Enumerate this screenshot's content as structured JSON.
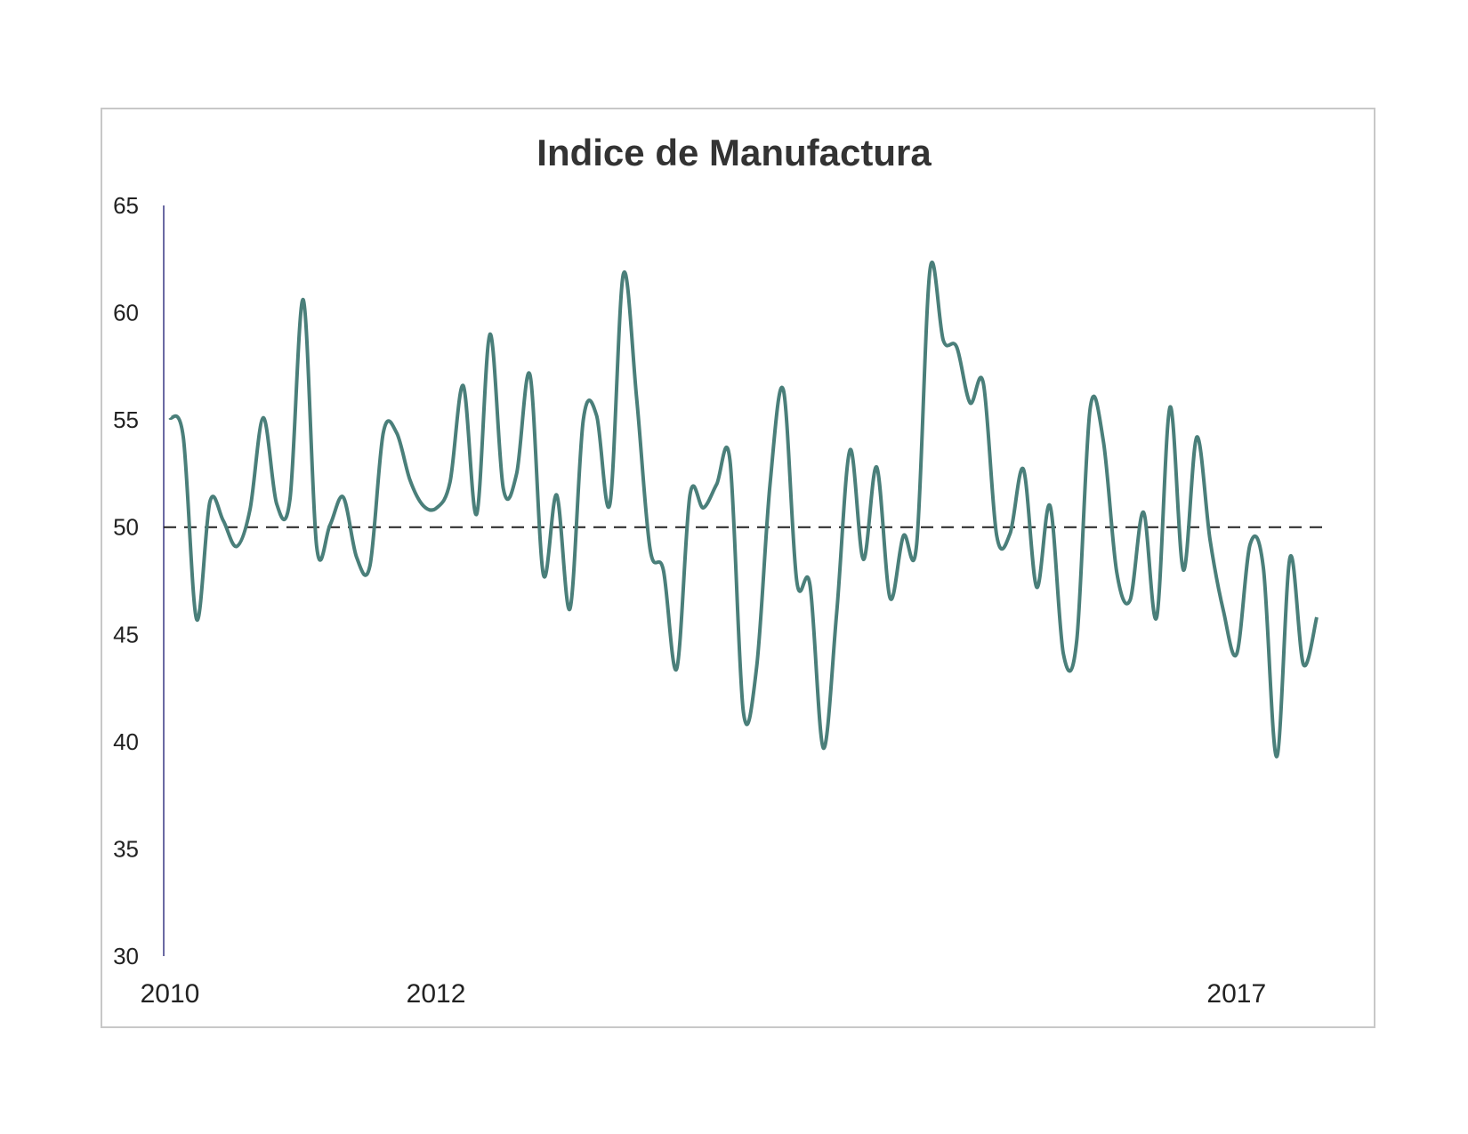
{
  "chart_data": {
    "type": "line",
    "title": "Indice de Manufactura",
    "xlabel": "",
    "ylabel": "",
    "ylim": [
      30,
      65
    ],
    "yticks": [
      65,
      60,
      55,
      50,
      45,
      40,
      35,
      30
    ],
    "xticks": [
      "2010",
      "2012",
      "2017"
    ],
    "grid": false,
    "legend": "none",
    "reference_line": {
      "value": 50,
      "style": "dashed",
      "color": "#222222"
    },
    "colors": {
      "line": "#4a7f7a",
      "axis": "#6b6aa3"
    },
    "series": [
      {
        "values": [
          55.1,
          54.2,
          45.7,
          51.2,
          50.3,
          49.1,
          50.8,
          55.1,
          51.1,
          51.3,
          60.6,
          49.1,
          50.1,
          51.4,
          48.6,
          48.2,
          54.4,
          54.4,
          52.2,
          51.0,
          50.9,
          52.1,
          56.6,
          50.6,
          59.0,
          51.8,
          52.5,
          57.1,
          47.8,
          51.5,
          46.2,
          55.0,
          55.2,
          51.1,
          61.8,
          56.0,
          49.0,
          48.0,
          43.4,
          51.5,
          50.9,
          52.0,
          53.1,
          41.4,
          43.5,
          52.0,
          56.4,
          47.5,
          47.3,
          39.7,
          46.0,
          53.6,
          48.5,
          52.8,
          46.7,
          49.6,
          49.2,
          62.0,
          58.7,
          58.4,
          55.8,
          56.7,
          49.6,
          49.7,
          52.7,
          47.2,
          51.0,
          44.1,
          44.7,
          55.5,
          54.0,
          47.9,
          46.6,
          50.7,
          45.8,
          55.6,
          48.0,
          54.2,
          49.4,
          46.1,
          44.1,
          49.2,
          48.1,
          39.3,
          48.6,
          43.6,
          45.8
        ]
      }
    ]
  }
}
